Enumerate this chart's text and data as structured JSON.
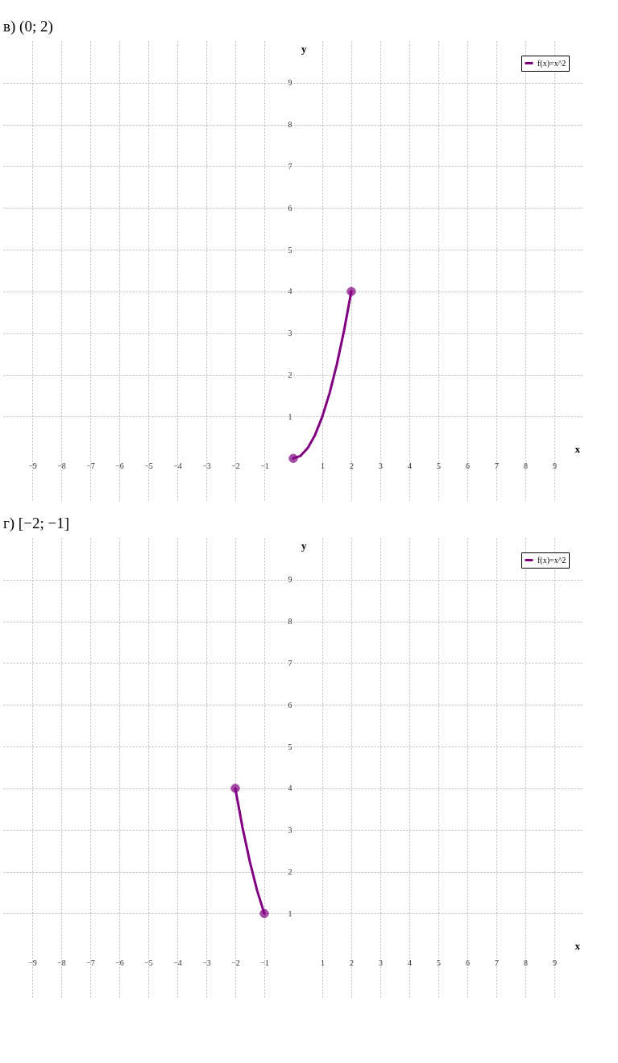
{
  "chart_data": [
    {
      "type": "line",
      "title": "в) (0; 2)",
      "xlabel": "x",
      "ylabel": "y",
      "xlim": [
        -10,
        10
      ],
      "ylim": [
        -1,
        10
      ],
      "xticks": [
        -9,
        -8,
        -7,
        -6,
        -5,
        -4,
        -3,
        -2,
        -1,
        1,
        2,
        3,
        4,
        5,
        6,
        7,
        8,
        9
      ],
      "yticks": [
        1,
        2,
        3,
        4,
        5,
        6,
        7,
        8,
        9
      ],
      "grid": true,
      "legend": "top right",
      "series": [
        {
          "name": "f(x)=x^2",
          "color": "#800080",
          "x": [
            0,
            0.25,
            0.5,
            0.75,
            1,
            1.25,
            1.5,
            1.75,
            2
          ],
          "values": [
            0,
            0.06,
            0.25,
            0.56,
            1,
            1.56,
            2.25,
            3.06,
            4
          ]
        },
        {
          "type": "scatter",
          "marker": "circle",
          "color": "#800080",
          "x": [
            0,
            2
          ],
          "values": [
            0,
            4
          ]
        }
      ]
    },
    {
      "type": "line",
      "title": "г) [−2; −1]",
      "xlabel": "x",
      "ylabel": "y",
      "xlim": [
        -10,
        10
      ],
      "ylim": [
        -1,
        10
      ],
      "xticks": [
        -9,
        -8,
        -7,
        -6,
        -5,
        -4,
        -3,
        -2,
        -1,
        1,
        2,
        3,
        4,
        5,
        6,
        7,
        8,
        9
      ],
      "yticks": [
        1,
        2,
        3,
        4,
        5,
        6,
        7,
        8,
        9
      ],
      "grid": true,
      "legend": "top right",
      "series": [
        {
          "name": "f(x)=x^2",
          "color": "#800080",
          "x": [
            -2,
            -1.75,
            -1.5,
            -1.25,
            -1
          ],
          "values": [
            4,
            3.06,
            2.25,
            1.56,
            1
          ]
        },
        {
          "type": "scatter",
          "marker": "circle",
          "color": "#800080",
          "x": [
            -2,
            -1
          ],
          "values": [
            4,
            1
          ]
        }
      ]
    }
  ]
}
